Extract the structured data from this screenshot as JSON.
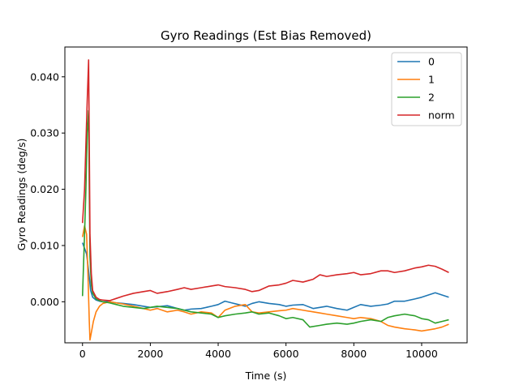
{
  "chart_data": {
    "type": "line",
    "title": "Gyro Readings (Est Bias Removed)",
    "xlabel": "Time (s)",
    "ylabel": "Gyro Readings (deg/s)",
    "xlim": [
      -520,
      11340
    ],
    "ylim": [
      -0.0073,
      0.0453
    ],
    "xticks": [
      0,
      2000,
      4000,
      6000,
      8000,
      10000
    ],
    "xtick_labels": [
      "0",
      "2000",
      "4000",
      "6000",
      "8000",
      "10000"
    ],
    "yticks": [
      0.0,
      0.01,
      0.02,
      0.03,
      0.04
    ],
    "ytick_labels": [
      "0.000",
      "0.010",
      "0.020",
      "0.030",
      "0.040"
    ],
    "grid": false,
    "legend_position": "upper right",
    "series": [
      {
        "name": "0",
        "color": "#1f77b4",
        "x": [
          0,
          60,
          120,
          180,
          240,
          300,
          400,
          500,
          600,
          800,
          1000,
          1200,
          1500,
          1800,
          2000,
          2200,
          2500,
          2800,
          3000,
          3200,
          3500,
          3800,
          4000,
          4200,
          4400,
          4600,
          4800,
          5000,
          5200,
          5500,
          5800,
          6000,
          6200,
          6500,
          6800,
          7000,
          7200,
          7500,
          7800,
          8000,
          8200,
          8500,
          8800,
          9000,
          9200,
          9500,
          9800,
          10000,
          10200,
          10400,
          10600,
          10800
        ],
        "y": [
          0.0105,
          0.0095,
          0.0085,
          0.0055,
          0.002,
          0.0008,
          0.0003,
          0.0001,
          0.0,
          0.0,
          -0.0002,
          -0.0003,
          -0.0005,
          -0.0008,
          -0.001,
          -0.0009,
          -0.0007,
          -0.0012,
          -0.0015,
          -0.0013,
          -0.0012,
          -0.0008,
          -0.0005,
          0.0001,
          -0.0002,
          -0.0005,
          -0.0008,
          -0.0003,
          0.0,
          -0.0003,
          -0.0005,
          -0.0008,
          -0.0006,
          -0.0005,
          -0.0012,
          -0.001,
          -0.0008,
          -0.0012,
          -0.0015,
          -0.001,
          -0.0005,
          -0.0008,
          -0.0006,
          -0.0004,
          0.0001,
          0.0001,
          0.0005,
          0.0008,
          0.0012,
          0.0016,
          0.0012,
          0.0008
        ]
      },
      {
        "name": "1",
        "color": "#ff7f0e",
        "x": [
          0,
          60,
          120,
          160,
          200,
          220,
          260,
          320,
          400,
          500,
          600,
          800,
          1000,
          1200,
          1500,
          1800,
          2000,
          2200,
          2500,
          2800,
          3000,
          3200,
          3500,
          3800,
          4000,
          4200,
          4500,
          4800,
          5000,
          5200,
          5500,
          5800,
          6000,
          6200,
          6500,
          6800,
          7000,
          7200,
          7500,
          7800,
          8000,
          8200,
          8500,
          8800,
          9000,
          9200,
          9500,
          9800,
          10000,
          10200,
          10400,
          10600,
          10800
        ],
        "y": [
          0.0115,
          0.0135,
          0.012,
          0.005,
          -0.0035,
          -0.0068,
          -0.0055,
          -0.0035,
          -0.0018,
          -0.0008,
          -0.0003,
          0.0,
          -0.0002,
          -0.0004,
          -0.0008,
          -0.0012,
          -0.0015,
          -0.0012,
          -0.0018,
          -0.0015,
          -0.0018,
          -0.0022,
          -0.0018,
          -0.002,
          -0.0028,
          -0.0015,
          -0.0008,
          -0.0005,
          -0.0018,
          -0.002,
          -0.0018,
          -0.0016,
          -0.0015,
          -0.0012,
          -0.0015,
          -0.0018,
          -0.002,
          -0.0022,
          -0.0025,
          -0.0028,
          -0.003,
          -0.0028,
          -0.003,
          -0.0035,
          -0.0042,
          -0.0045,
          -0.0048,
          -0.005,
          -0.0052,
          -0.005,
          -0.0048,
          -0.0045,
          -0.004
        ]
      },
      {
        "name": "2",
        "color": "#2ca02c",
        "x": [
          0,
          60,
          100,
          140,
          180,
          200,
          220,
          260,
          300,
          400,
          500,
          600,
          800,
          1000,
          1200,
          1500,
          1800,
          2000,
          2200,
          2500,
          2800,
          3000,
          3200,
          3500,
          3800,
          4000,
          4200,
          4500,
          4800,
          5000,
          5200,
          5500,
          5800,
          6000,
          6200,
          6500,
          6700,
          7000,
          7200,
          7500,
          7800,
          8000,
          8200,
          8500,
          8800,
          9000,
          9200,
          9500,
          9800,
          10000,
          10200,
          10400,
          10600,
          10800
        ],
        "y": [
          0.001,
          0.012,
          0.02,
          0.03,
          0.034,
          0.02,
          0.008,
          0.003,
          0.0015,
          0.0005,
          0.0002,
          0.0,
          -0.0002,
          -0.0005,
          -0.0008,
          -0.001,
          -0.0012,
          -0.001,
          -0.0008,
          -0.001,
          -0.0012,
          -0.0015,
          -0.0018,
          -0.002,
          -0.0022,
          -0.0028,
          -0.0025,
          -0.0022,
          -0.002,
          -0.0018,
          -0.0022,
          -0.002,
          -0.0025,
          -0.003,
          -0.0028,
          -0.0032,
          -0.0045,
          -0.0042,
          -0.004,
          -0.0038,
          -0.004,
          -0.0038,
          -0.0035,
          -0.0032,
          -0.0035,
          -0.0028,
          -0.0025,
          -0.0022,
          -0.0025,
          -0.003,
          -0.0032,
          -0.0038,
          -0.0035,
          -0.0032
        ]
      },
      {
        "name": "norm",
        "color": "#d62728",
        "x": [
          0,
          60,
          100,
          140,
          180,
          200,
          220,
          260,
          300,
          400,
          500,
          600,
          800,
          1000,
          1200,
          1500,
          1800,
          2000,
          2200,
          2500,
          2800,
          3000,
          3200,
          3500,
          3800,
          4000,
          4200,
          4500,
          4800,
          5000,
          5200,
          5500,
          5800,
          6000,
          6200,
          6500,
          6800,
          7000,
          7200,
          7500,
          7800,
          8000,
          8200,
          8500,
          8800,
          9000,
          9200,
          9500,
          9800,
          10000,
          10200,
          10400,
          10600,
          10800
        ],
        "y": [
          0.014,
          0.02,
          0.028,
          0.036,
          0.043,
          0.028,
          0.012,
          0.005,
          0.002,
          0.0008,
          0.0004,
          0.0003,
          0.0002,
          0.0006,
          0.001,
          0.0015,
          0.0018,
          0.002,
          0.0015,
          0.0018,
          0.0022,
          0.0025,
          0.0022,
          0.0025,
          0.0028,
          0.003,
          0.0027,
          0.0025,
          0.0022,
          0.0018,
          0.002,
          0.0028,
          0.003,
          0.0033,
          0.0038,
          0.0035,
          0.004,
          0.0048,
          0.0045,
          0.0048,
          0.005,
          0.0052,
          0.0048,
          0.005,
          0.0055,
          0.0055,
          0.0052,
          0.0055,
          0.006,
          0.0062,
          0.0065,
          0.0063,
          0.0058,
          0.0052
        ]
      }
    ]
  }
}
